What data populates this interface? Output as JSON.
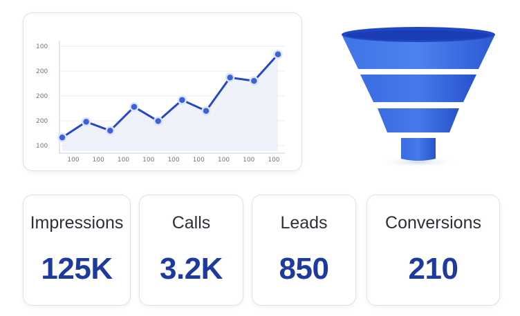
{
  "chart_data": {
    "type": "line",
    "title": "",
    "xlabel": "",
    "ylabel": "",
    "y_tick_labels": [
      "100",
      "200",
      "200",
      "200",
      "100"
    ],
    "x_tick_labels": [
      "100",
      "100",
      "100",
      "100",
      "100",
      "100",
      "100",
      "100",
      "100"
    ],
    "series": [
      {
        "values": [
          1.0,
          2.15,
          1.5,
          3.25,
          2.2,
          3.75,
          2.95,
          5.4,
          5.15,
          7.1
        ]
      }
    ],
    "ylim": [
      0,
      8
    ],
    "grid": true,
    "line_color": "#2447c9",
    "area_color": "#e8edfa"
  },
  "funnel": {
    "icon": "funnel-icon",
    "colors": {
      "rim": "#1f46c4",
      "tier_top": "#3a6fe0",
      "tier_bottom": "#2a56cf"
    }
  },
  "stats": [
    {
      "label": "Impressions",
      "value": "125K"
    },
    {
      "label": "Calls",
      "value": "3.2K"
    },
    {
      "label": "Leads",
      "value": "850"
    },
    {
      "label": "Conversions",
      "value": "210"
    }
  ]
}
